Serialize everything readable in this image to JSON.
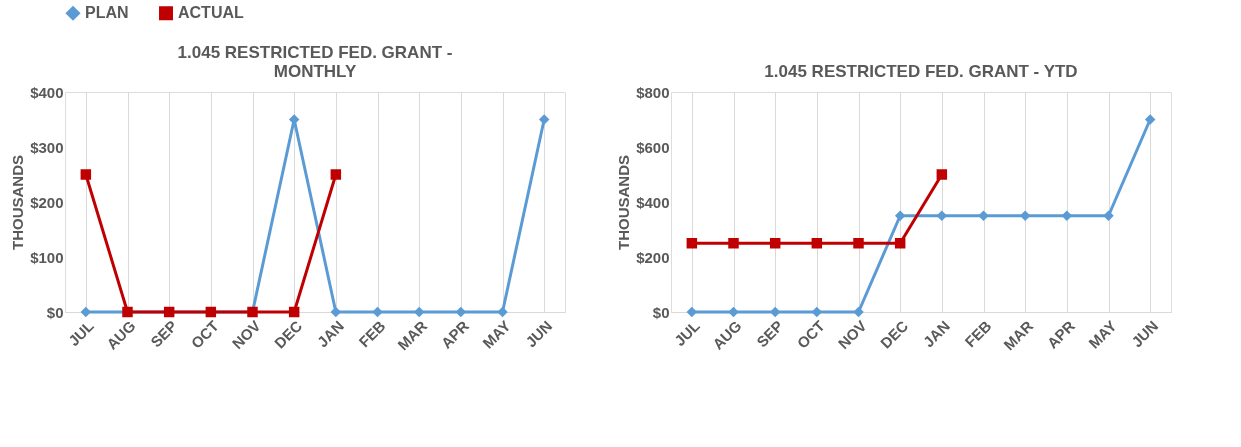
{
  "chart_data": [
    {
      "type": "line",
      "title": "1.045 RESTRICTED FED. GRANT - MONTHLY",
      "ylabel": "THOUSANDS",
      "categories": [
        "JUL",
        "AUG",
        "SEP",
        "OCT",
        "NOV",
        "DEC",
        "JAN",
        "FEB",
        "MAR",
        "APR",
        "MAY",
        "JUN"
      ],
      "series": [
        {
          "name": "PLAN",
          "color": "#5b9bd5",
          "marker": "diamond",
          "values": [
            0,
            0,
            0,
            0,
            0,
            350,
            0,
            0,
            0,
            0,
            0,
            350
          ]
        },
        {
          "name": "ACTUAL",
          "color": "#c00000",
          "marker": "square",
          "values": [
            250,
            0,
            0,
            0,
            0,
            0,
            250,
            null,
            null,
            null,
            null,
            null
          ]
        }
      ],
      "ylim": [
        0,
        400
      ],
      "yticks": [
        {
          "value": 0,
          "label": "$0"
        },
        {
          "value": 100,
          "label": "$100"
        },
        {
          "value": 200,
          "label": "$200"
        },
        {
          "value": 300,
          "label": "$300"
        },
        {
          "value": 400,
          "label": "$400"
        }
      ],
      "grid": "x",
      "legend": "top"
    },
    {
      "type": "line",
      "title": "1.045 RESTRICTED FED. GRANT - YTD",
      "ylabel": "THOUSANDS",
      "categories": [
        "JUL",
        "AUG",
        "SEP",
        "OCT",
        "NOV",
        "DEC",
        "JAN",
        "FEB",
        "MAR",
        "APR",
        "MAY",
        "JUN"
      ],
      "series": [
        {
          "name": "PLAN",
          "color": "#5b9bd5",
          "marker": "diamond",
          "values": [
            0,
            0,
            0,
            0,
            0,
            350,
            350,
            350,
            350,
            350,
            350,
            700
          ]
        },
        {
          "name": "ACTUAL",
          "color": "#c00000",
          "marker": "square",
          "values": [
            250,
            250,
            250,
            250,
            250,
            250,
            500,
            null,
            null,
            null,
            null,
            null
          ]
        }
      ],
      "ylim": [
        0,
        800
      ],
      "yticks": [
        {
          "value": 0,
          "label": "$0"
        },
        {
          "value": 200,
          "label": "$200"
        },
        {
          "value": 400,
          "label": "$400"
        },
        {
          "value": 600,
          "label": "$600"
        },
        {
          "value": 800,
          "label": "$800"
        }
      ],
      "grid": "x",
      "legend": "top"
    }
  ]
}
